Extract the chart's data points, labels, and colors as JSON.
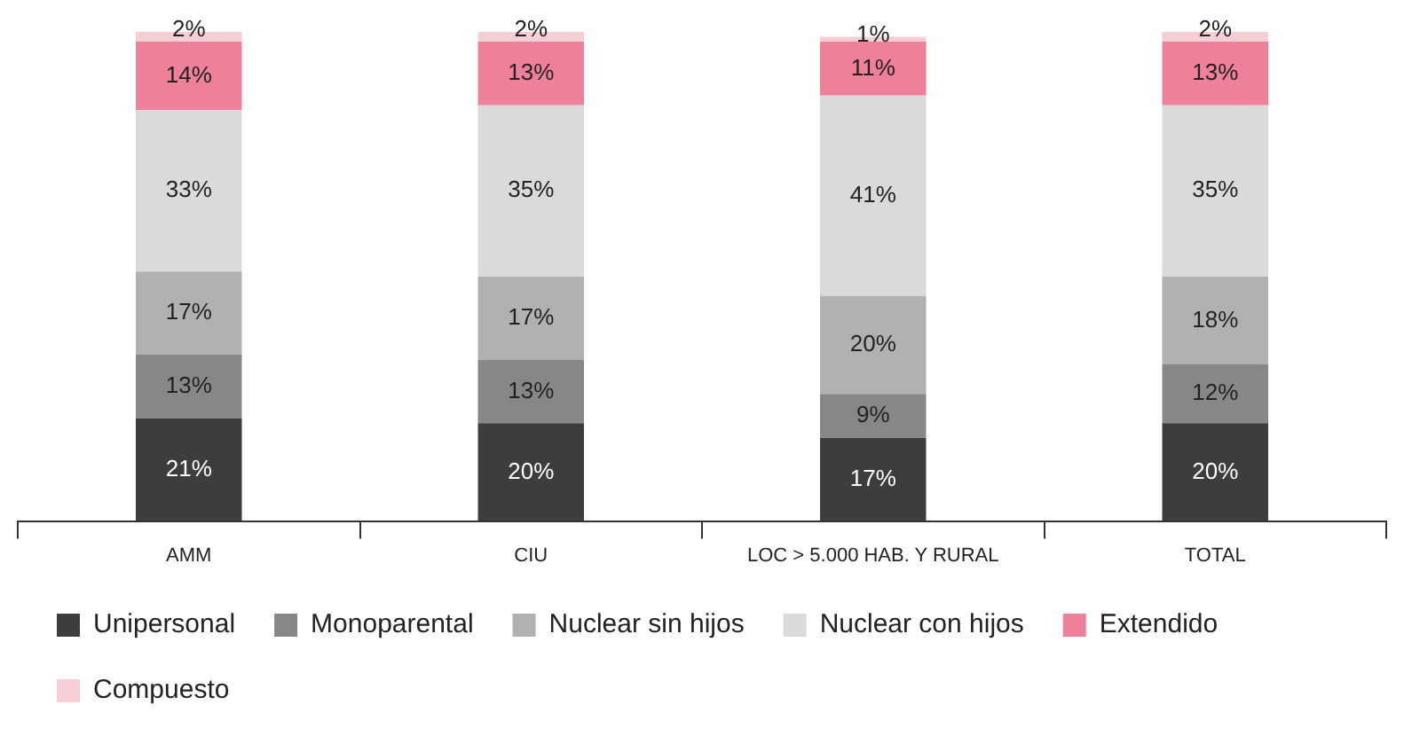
{
  "chart_data": {
    "type": "bar",
    "stacked": true,
    "categories": [
      "AMM",
      "CIU",
      "LOC > 5.000 HAB. Y RURAL",
      "TOTAL"
    ],
    "legend": "bottom",
    "grid": false,
    "tick_labels": "x",
    "series": [
      {
        "name": "Unipersonal",
        "color": "#3d3d3d",
        "values": [
          21,
          20,
          17,
          20
        ],
        "value_labels": [
          "21%",
          "20%",
          "17%",
          "20%"
        ]
      },
      {
        "name": "Monoparental",
        "color": "#878787",
        "values": [
          13,
          13,
          9,
          12
        ],
        "value_labels": [
          "13%",
          "13%",
          "9%",
          "12%"
        ]
      },
      {
        "name": "Nuclear sin hijos",
        "color": "#b1b1b1",
        "values": [
          17,
          17,
          20,
          18
        ],
        "value_labels": [
          "17%",
          "17%",
          "20%",
          "18%"
        ]
      },
      {
        "name": "Nuclear con hijos",
        "color": "#dadada",
        "values": [
          33,
          35,
          41,
          35
        ],
        "value_labels": [
          "33%",
          "35%",
          "41%",
          "35%"
        ]
      },
      {
        "name": "Extendido",
        "color": "#ef8099",
        "values": [
          14,
          13,
          11,
          13
        ],
        "value_labels": [
          "14%",
          "13%",
          "11%",
          "13%"
        ]
      },
      {
        "name": "Compuesto",
        "color": "#f7cdd6",
        "values": [
          2,
          2,
          1,
          2
        ],
        "value_labels": [
          "2%",
          "2%",
          "1%",
          "2%"
        ]
      }
    ]
  }
}
